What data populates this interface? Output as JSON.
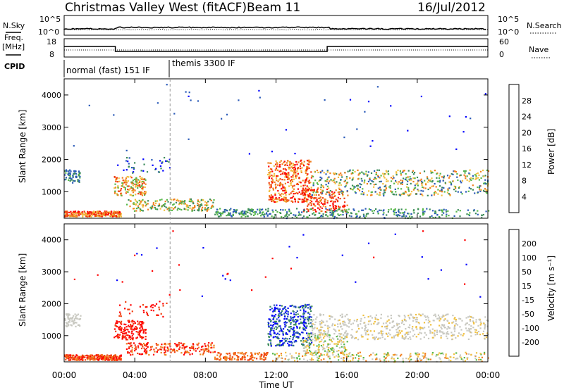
{
  "header": {
    "radar": "Christmas Valley West (fitACF)",
    "beam": "Beam 11",
    "date": "16/Jul/2012"
  },
  "labels": {
    "nsky": "N.Sky",
    "nsearch": "N.Search",
    "freq_line1": "Freq.",
    "freq_line2": "[MHz]",
    "nave": "Nave",
    "cpid": "CPID",
    "top_tick_hi": "10^5",
    "top_tick_lo": "10^0",
    "freq_hi": "18",
    "freq_lo": "8",
    "nave_hi": "60",
    "nave_lo": "0",
    "cpid_1": "normal (fast) 151 IF",
    "cpid_2": "themis 3300 IF",
    "xlabel": "Time UT"
  },
  "chart_data": [
    {
      "type": "heatmap",
      "name": "power",
      "ylabel": "Slant Range [km]",
      "yticks": [
        "1000",
        "2000",
        "3000",
        "4000"
      ],
      "ylim": [
        180,
        4500
      ],
      "xlim": [
        0,
        24
      ],
      "colorbar_label": "Power [dB]",
      "colorbar_ticks": [
        "4",
        "8",
        "12",
        "16",
        "20",
        "24",
        "28"
      ],
      "colorbar_colors": [
        "#0000ff",
        "#2a5ab8",
        "#3b8a5a",
        "#58b84a",
        "#f0c040",
        "#f08020",
        "#f04010",
        "#ff0000"
      ]
    },
    {
      "type": "heatmap",
      "name": "velocity",
      "ylabel": "Slant Range [km]",
      "yticks": [
        "1000",
        "2000",
        "3000",
        "4000"
      ],
      "ylim": [
        180,
        4500
      ],
      "xlim": [
        0,
        24
      ],
      "colorbar_label": "Velocity [m s⁻¹]",
      "colorbar_ticks": [
        "-200",
        "-100",
        "-50",
        "-15",
        "15",
        "50",
        "100",
        "200"
      ],
      "colorbar_colors": [
        "#ff0000",
        "#f04010",
        "#f08020",
        "#f0c040",
        "#c8c8c0",
        "#58b84a",
        "#3b8a5a",
        "#2a5ab8",
        "#0000ff"
      ]
    }
  ],
  "xticks": [
    "00:00",
    "04:00",
    "08:00",
    "12:00",
    "16:00",
    "20:00",
    "00:00"
  ]
}
